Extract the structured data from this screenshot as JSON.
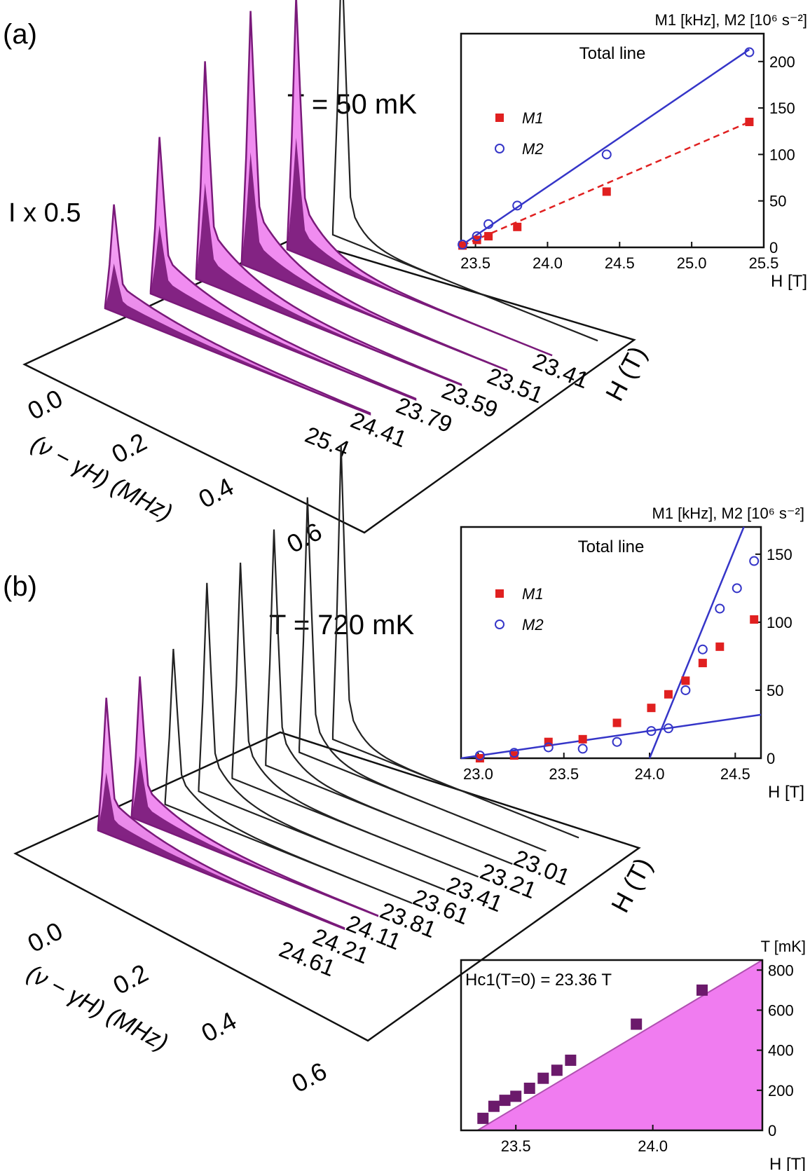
{
  "panel_a": {
    "label": "(a)",
    "temperature": "T = 50 mK",
    "scale_note": "I x 0.5",
    "freq_axis_label": "(ν − γH) (MHz)",
    "freq_ticks": [
      "0.0",
      "0.2",
      "0.4",
      "0.6"
    ],
    "field_axis_label": "H (T)",
    "field_labels": [
      "23.41",
      "23.51",
      "23.59",
      "23.79",
      "24.41",
      "25.4"
    ]
  },
  "panel_b": {
    "label": "(b)",
    "temperature": "T = 720 mK",
    "freq_axis_label": "(ν − γH) (MHz)",
    "freq_ticks": [
      "0.0",
      "0.2",
      "0.4",
      "0.6"
    ],
    "field_axis_label": "H (T)",
    "field_labels": [
      "23.01",
      "23.21",
      "23.41",
      "23.61",
      "23.81",
      "24.11",
      "24.21",
      "24.61"
    ]
  },
  "colors": {
    "m1": "#e02020",
    "m2": "#3535c8",
    "fill_light": "#f08cf0",
    "fill_dark": "#7a1a7a",
    "phase": "#f07cf0"
  },
  "chart_data": [
    {
      "name": "inset_a",
      "type": "scatter",
      "title": "Total line",
      "ylabel": "M1 [kHz], M2 [10⁶ s⁻²]",
      "xlabel": "H [T]",
      "xlim": [
        23.4,
        25.5
      ],
      "ylim": [
        0,
        230
      ],
      "xticks": [
        23.5,
        24.0,
        24.5,
        25.0,
        25.5
      ],
      "yticks": [
        0,
        50,
        100,
        150,
        200
      ],
      "legend": [
        "M1",
        "M2"
      ],
      "series": [
        {
          "name": "M1",
          "x": [
            23.41,
            23.51,
            23.59,
            23.79,
            24.41,
            25.4
          ],
          "y": [
            2,
            8,
            12,
            22,
            60,
            135
          ]
        },
        {
          "name": "M2",
          "x": [
            23.41,
            23.51,
            23.59,
            23.79,
            24.41,
            25.4
          ],
          "y": [
            3,
            12,
            25,
            45,
            100,
            210
          ]
        }
      ],
      "fits": [
        {
          "series": "M2",
          "style": "solid",
          "x": [
            23.41,
            25.4
          ],
          "y": [
            3,
            213
          ]
        },
        {
          "series": "M1",
          "style": "dashed",
          "x": [
            23.41,
            25.4
          ],
          "y": [
            2,
            135
          ]
        }
      ]
    },
    {
      "name": "inset_b",
      "type": "scatter",
      "title": "Total line",
      "ylabel": "M1 [kHz], M2 [10⁶ s⁻²]",
      "xlabel": "H [T]",
      "xlim": [
        22.9,
        24.65
      ],
      "ylim": [
        0,
        170
      ],
      "xticks": [
        23.0,
        23.5,
        24.0,
        24.5
      ],
      "yticks": [
        0,
        50,
        100,
        150
      ],
      "legend": [
        "M1",
        "M2"
      ],
      "series": [
        {
          "name": "M1",
          "x": [
            23.01,
            23.21,
            23.41,
            23.61,
            23.81,
            24.01,
            24.11,
            24.21,
            24.31,
            24.41,
            24.61
          ],
          "y": [
            0,
            2,
            12,
            14,
            26,
            37,
            47,
            57,
            70,
            82,
            102
          ]
        },
        {
          "name": "M2",
          "x": [
            23.01,
            23.21,
            23.41,
            23.61,
            23.81,
            24.01,
            24.11,
            24.21,
            24.31,
            24.41,
            24.51,
            24.61
          ],
          "y": [
            2,
            4,
            8,
            7,
            12,
            20,
            22,
            50,
            80,
            110,
            125,
            145
          ]
        }
      ],
      "fits": [
        {
          "series": "M2",
          "style": "solid",
          "x": [
            22.9,
            24.65
          ],
          "y": [
            0,
            32
          ]
        },
        {
          "series": "M2",
          "style": "solid",
          "x": [
            24.0,
            24.55
          ],
          "y": [
            0,
            170
          ]
        }
      ]
    },
    {
      "name": "inset_c",
      "type": "scatter",
      "title": "Hc1(T=0) = 23.36 T",
      "ylabel": "T [mK]",
      "xlabel": "H [T]",
      "xlim": [
        23.3,
        24.4
      ],
      "ylim": [
        0,
        850
      ],
      "xticks": [
        23.5,
        24.0
      ],
      "yticks": [
        0,
        200,
        400,
        600,
        800
      ],
      "series": [
        {
          "name": "Tc",
          "x": [
            23.38,
            23.42,
            23.46,
            23.5,
            23.55,
            23.6,
            23.65,
            23.7,
            23.94,
            24.18
          ],
          "y": [
            60,
            120,
            150,
            170,
            210,
            260,
            300,
            350,
            530,
            700
          ]
        }
      ],
      "phase_boundary": {
        "x": [
          23.36,
          24.4
        ],
        "y": [
          0,
          850
        ]
      }
    }
  ]
}
